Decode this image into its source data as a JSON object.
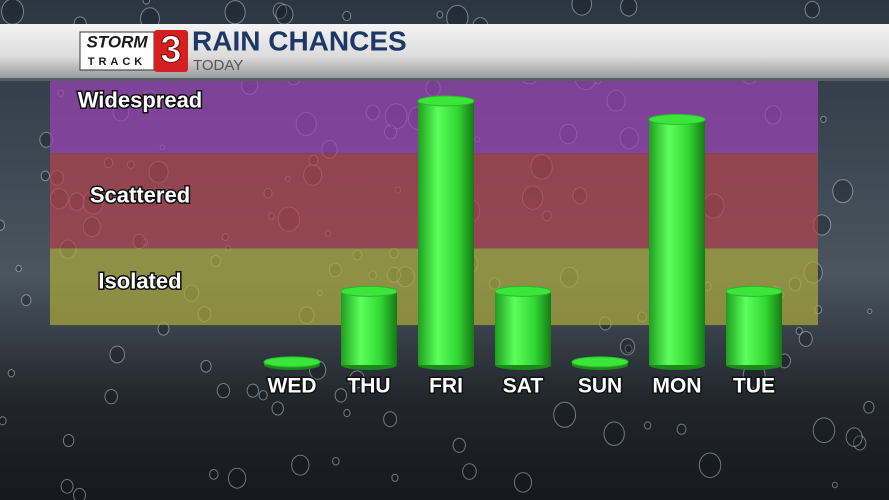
{
  "chart_data": {
    "type": "bar",
    "brand": {
      "top": "STORM",
      "bottom": "TRACK",
      "number": "3"
    },
    "title": "RAIN CHANCES",
    "subtitle": "TODAY",
    "categories": [
      "WED",
      "THU",
      "FRI",
      "SAT",
      "SUN",
      "MON",
      "TUE"
    ],
    "values": [
      1,
      24,
      86,
      24,
      1,
      80,
      24
    ],
    "color": "#39e639",
    "ylim": [
      0,
      100
    ],
    "bands": [
      {
        "label": "Isolated",
        "from": 13,
        "to": 38,
        "color": "#a9a83c"
      },
      {
        "label": "Scattered",
        "from": 38,
        "to": 69,
        "color": "#b3424e"
      },
      {
        "label": "Widespread",
        "from": 69,
        "to": 100,
        "color": "#9a44b4"
      }
    ]
  }
}
